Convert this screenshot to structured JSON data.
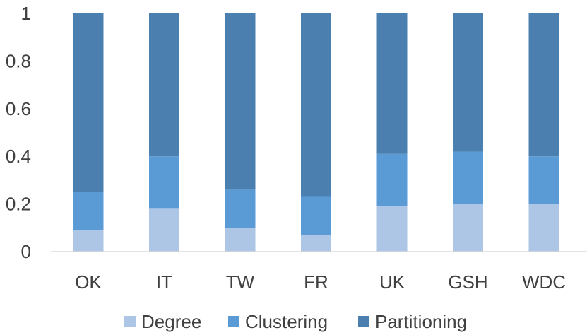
{
  "chart_data": {
    "type": "bar",
    "stacked": true,
    "categories": [
      "OK",
      "IT",
      "TW",
      "FR",
      "UK",
      "GSH",
      "WDC"
    ],
    "series": [
      {
        "name": "Degree",
        "color": "#aec6e6",
        "values": [
          0.09,
          0.18,
          0.1,
          0.07,
          0.19,
          0.2,
          0.2
        ]
      },
      {
        "name": "Clustering",
        "color": "#5b9bd5",
        "values": [
          0.16,
          0.22,
          0.16,
          0.16,
          0.22,
          0.22,
          0.2
        ]
      },
      {
        "name": "Partitioning",
        "color": "#4a7fb0",
        "values": [
          0.75,
          0.6,
          0.74,
          0.77,
          0.59,
          0.58,
          0.6
        ]
      }
    ],
    "y_ticks": [
      0,
      0.2,
      0.4,
      0.6,
      0.8,
      1
    ],
    "y_tick_labels": [
      "0",
      "0.2",
      "0.4",
      "0.6",
      "0.8",
      "1"
    ],
    "ylim": [
      0,
      1
    ],
    "grid": false,
    "legend_position": "bottom"
  }
}
